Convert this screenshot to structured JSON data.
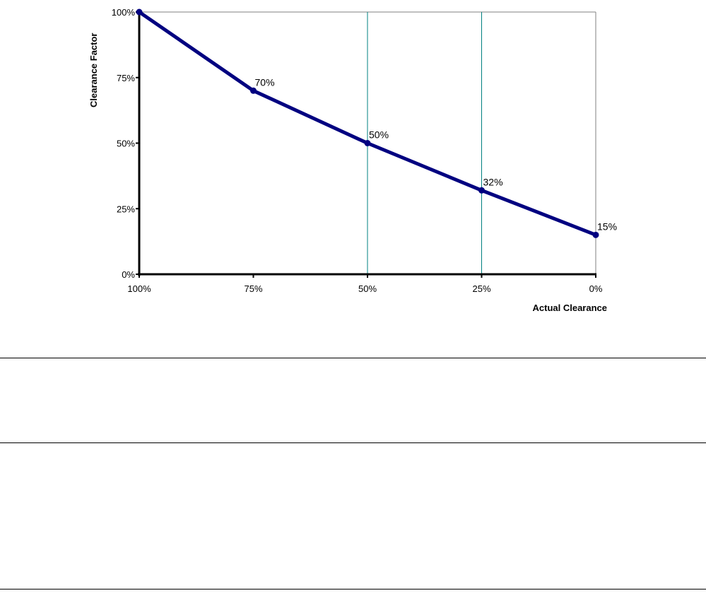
{
  "chart_data": {
    "type": "line",
    "xlabel": "Actual Clearance",
    "ylabel": "Clearance Factor",
    "x": [
      100,
      75,
      50,
      25,
      0
    ],
    "values": [
      100,
      70,
      50,
      32,
      15
    ],
    "data_labels": [
      "",
      "70%",
      "50%",
      "32%",
      "15%"
    ],
    "xlim": [
      100,
      0
    ],
    "ylim": [
      0,
      100
    ],
    "x_ticks": [
      "100%",
      "75%",
      "50%",
      "25%",
      "0%"
    ],
    "y_ticks": [
      "0%",
      "25%",
      "50%",
      "75%",
      "100%"
    ],
    "vertical_gridlines_at": [
      50,
      25
    ],
    "grid": "vertical",
    "legend": "none",
    "colors": {
      "series": "#000080",
      "gridline": "#008080",
      "axis": "#000000",
      "frame": "#808080"
    }
  }
}
